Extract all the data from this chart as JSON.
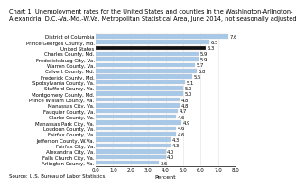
{
  "title_line1": "Chart 1. Unemployment rates for the United States and counties in the Washington-Arlington-",
  "title_line2": "Alexandria, D.C.-Va.-Md.-W.Va. Metropolitan Statistical Area, June 2014, not seasonally adjusted",
  "categories": [
    "District of Columbia",
    "Prince Georges County, Md.",
    "United States",
    "Charles County, Md.",
    "Fredericksburg City, Va.",
    "Warren County, Va.",
    "Calvert County, Md.",
    "Frederick County, Md.",
    "Spotsylvania County, Va.",
    "Stafford County, Va.",
    "Montgomery County, Md.",
    "Prince William County, Va.",
    "Manassas City, Va.",
    "Fauquier County, Va.",
    "Clarke County, Va.",
    "Manassas Park City, Va.",
    "Loudoun County, Va.",
    "Fairfax County, Va.",
    "Jefferson County, W.Va.",
    "Fairfax City, Va.",
    "Alexandria City, Va.",
    "Falls Church City, Va.",
    "Arlington County, Va."
  ],
  "values": [
    7.6,
    6.5,
    6.3,
    5.9,
    5.9,
    5.7,
    5.8,
    5.5,
    5.1,
    5.0,
    5.0,
    4.8,
    4.8,
    4.7,
    4.6,
    4.9,
    4.6,
    4.6,
    4.3,
    4.3,
    4.0,
    4.0,
    3.6
  ],
  "bar_colors_list": [
    "#a8c8e8",
    "#a8c8e8",
    "#111111",
    "#a8c8e8",
    "#a8c8e8",
    "#a8c8e8",
    "#a8c8e8",
    "#a8c8e8",
    "#a8c8e8",
    "#a8c8e8",
    "#a8c8e8",
    "#a8c8e8",
    "#a8c8e8",
    "#a8c8e8",
    "#a8c8e8",
    "#a8c8e8",
    "#a8c8e8",
    "#a8c8e8",
    "#a8c8e8",
    "#a8c8e8",
    "#a8c8e8",
    "#a8c8e8",
    "#a8c8e8"
  ],
  "xlabel": "Percent",
  "xlim": [
    0,
    8.0
  ],
  "xticks": [
    0.0,
    1.0,
    2.0,
    3.0,
    4.0,
    5.0,
    6.0,
    7.0,
    8.0
  ],
  "source": "Source: U.S. Bureau of Labor Statistics.",
  "title_fontsize": 4.8,
  "label_fontsize": 4.0,
  "value_fontsize": 3.8,
  "xlabel_fontsize": 4.5,
  "source_fontsize": 4.0,
  "background_color": "#ffffff"
}
